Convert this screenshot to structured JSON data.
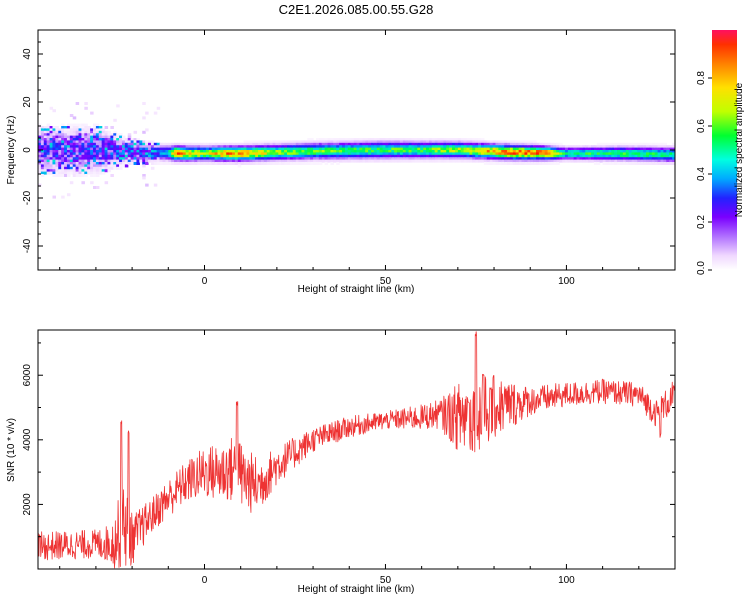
{
  "title": "C2E1.2026.085.00.55.G28",
  "chart_data": [
    {
      "type": "heatmap",
      "xlabel": "Height of straight line (km)",
      "ylabel": "Frequency (Hz)",
      "xlim": [
        -46,
        130
      ],
      "ylim": [
        -50,
        50
      ],
      "xticks": [
        0,
        50,
        100
      ],
      "yticks": [
        -40,
        -20,
        0,
        20,
        40
      ],
      "colorbar": {
        "label": "Normalized spectral amplitude",
        "range": [
          0,
          1
        ],
        "ticks": [
          "0.0",
          "0.2",
          "0.4",
          "0.6",
          "0.8"
        ]
      },
      "colormap": [
        "#ffffff",
        "#f0d8ff",
        "#c090ff",
        "#8000ff",
        "#2020ff",
        "#00a0ff",
        "#00e8d0",
        "#00ff40",
        "#c0ff00",
        "#ffe000",
        "#ff8000",
        "#ff2000"
      ],
      "ridge": {
        "center_hz": [
          [
            -46,
            0
          ],
          [
            -30,
            0
          ],
          [
            -15,
            -1
          ],
          [
            -5,
            -1.5
          ],
          [
            10,
            -1.5
          ],
          [
            30,
            -0.5
          ],
          [
            50,
            0
          ],
          [
            70,
            0
          ],
          [
            85,
            -1
          ],
          [
            100,
            -1.5
          ],
          [
            115,
            -1.5
          ],
          [
            130,
            -2
          ]
        ],
        "peak_amplitude": [
          [
            -46,
            0.3
          ],
          [
            -20,
            0.35
          ],
          [
            -10,
            0.5
          ],
          [
            -8,
            0.95
          ],
          [
            0,
            0.7
          ],
          [
            5,
            0.9
          ],
          [
            10,
            0.9
          ],
          [
            20,
            0.7
          ],
          [
            40,
            0.65
          ],
          [
            60,
            0.65
          ],
          [
            75,
            0.8
          ],
          [
            85,
            0.95
          ],
          [
            95,
            0.95
          ],
          [
            100,
            0.6
          ],
          [
            115,
            0.65
          ],
          [
            130,
            0.6
          ]
        ],
        "half_width_hz": [
          [
            -46,
            8
          ],
          [
            -30,
            8
          ],
          [
            -20,
            4
          ],
          [
            -10,
            3
          ],
          [
            0,
            3
          ],
          [
            50,
            3.5
          ],
          [
            90,
            3
          ],
          [
            100,
            2.5
          ],
          [
            130,
            3
          ]
        ]
      }
    },
    {
      "type": "line",
      "xlabel": "Height of straight line (km)",
      "ylabel": "SNR (10 * v/v)",
      "xlim": [
        -46,
        130
      ],
      "ylim": [
        0,
        7400
      ],
      "xticks": [
        0,
        50,
        100
      ],
      "yticks": [
        2000,
        4000,
        6000
      ],
      "color": "#ee3333",
      "trend": [
        [
          -46,
          700
        ],
        [
          -35,
          750
        ],
        [
          -25,
          800
        ],
        [
          -22,
          1500
        ],
        [
          -20,
          900
        ],
        [
          -15,
          1600
        ],
        [
          -10,
          2200
        ],
        [
          -5,
          2700
        ],
        [
          0,
          3000
        ],
        [
          5,
          3000
        ],
        [
          8,
          3100
        ],
        [
          12,
          2700
        ],
        [
          15,
          2600
        ],
        [
          20,
          3200
        ],
        [
          25,
          3600
        ],
        [
          30,
          4000
        ],
        [
          40,
          4400
        ],
        [
          50,
          4600
        ],
        [
          60,
          4700
        ],
        [
          65,
          4800
        ],
        [
          70,
          4700
        ],
        [
          75,
          4800
        ],
        [
          80,
          5000
        ],
        [
          90,
          5200
        ],
        [
          100,
          5400
        ],
        [
          110,
          5500
        ],
        [
          120,
          5400
        ],
        [
          125,
          4800
        ],
        [
          130,
          5400
        ]
      ],
      "noise": [
        [
          -46,
          450
        ],
        [
          -30,
          450
        ],
        [
          -26,
          600
        ],
        [
          -22,
          1500
        ],
        [
          -20,
          800
        ],
        [
          -15,
          550
        ],
        [
          -5,
          650
        ],
        [
          10,
          1100
        ],
        [
          20,
          600
        ],
        [
          30,
          380
        ],
        [
          50,
          280
        ],
        [
          65,
          450
        ],
        [
          72,
          1300
        ],
        [
          80,
          1000
        ],
        [
          90,
          450
        ],
        [
          100,
          380
        ],
        [
          120,
          380
        ],
        [
          130,
          500
        ]
      ],
      "spikes": [
        [
          -23,
          4600
        ],
        [
          -21,
          4300
        ],
        [
          9,
          5200
        ],
        [
          73,
          5200
        ],
        [
          75,
          7350
        ],
        [
          77,
          6100
        ],
        [
          79,
          5700
        ],
        [
          126,
          4200
        ]
      ]
    }
  ]
}
